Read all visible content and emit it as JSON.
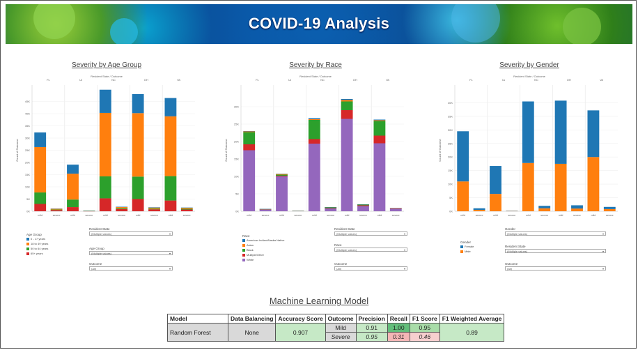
{
  "banner": {
    "title": "COVID-19 Analysis"
  },
  "colors": {
    "blue": "#1f77b4",
    "orange": "#ff7f0e",
    "green": "#2ca02c",
    "red": "#d62728",
    "purple": "#9467bd"
  },
  "common": {
    "states": [
      "FL",
      "IA",
      "NC",
      "OH",
      "VA"
    ],
    "x_categories": [
      "mild",
      "severe",
      "mild",
      "severe",
      "mild",
      "severe",
      "mild",
      "severe",
      "mild",
      "severe"
    ],
    "facet_header": "Resident State / Outcome",
    "y_label": "Count of Outcome"
  },
  "panels": [
    {
      "title": "Severity by Age Group",
      "controls": [
        {
          "label": "Resident State",
          "value": "(Multiple values)"
        },
        {
          "label": "Age Group",
          "value": "(Multiple values)"
        },
        {
          "label": "Outcome",
          "value": "(All)"
        }
      ],
      "legend_title": "Age Group"
    },
    {
      "title": "Severity by Race",
      "controls": [
        {
          "label": "Resident State",
          "value": "(Multiple values)"
        },
        {
          "label": "Race",
          "value": "(Multiple values)"
        },
        {
          "label": "Outcome",
          "value": "(All)"
        }
      ],
      "legend_title": "Race"
    },
    {
      "title": "Severity by Gender",
      "controls": [
        {
          "label": "Gender",
          "value": "(Multiple values)"
        },
        {
          "label": "Resident State",
          "value": "(Multiple values)"
        },
        {
          "label": "Outcome",
          "value": "(All)"
        }
      ],
      "legend_title": "Gender"
    }
  ],
  "chart_data": [
    {
      "type": "bar",
      "title": "Severity by Age Group",
      "stacked": true,
      "ylabel": "Count of Outcome",
      "ylim": [
        0,
        50000
      ],
      "yticks": [
        "0K",
        "5K",
        "10K",
        "15K",
        "20K",
        "25K",
        "30K",
        "35K",
        "40K",
        "45K"
      ],
      "categories": [
        "FL mild",
        "FL severe",
        "IA mild",
        "IA severe",
        "NC mild",
        "NC severe",
        "OH mild",
        "OH severe",
        "VA mild",
        "VA severe"
      ],
      "series": [
        {
          "name": "65+ years",
          "color": "#d62728",
          "values": [
            3000,
            500,
            1700,
            80,
            5300,
            900,
            5000,
            800,
            4400,
            700
          ]
        },
        {
          "name": "50 to 64 years",
          "color": "#2ca02c",
          "values": [
            4700,
            200,
            3100,
            50,
            9000,
            350,
            9200,
            300,
            10000,
            300
          ]
        },
        {
          "name": "18 to 49 years",
          "color": "#ff7f0e",
          "values": [
            18600,
            300,
            10600,
            100,
            26000,
            450,
            26000,
            400,
            24500,
            400
          ]
        },
        {
          "name": "0 - 17 years",
          "color": "#1f77b4",
          "values": [
            6000,
            100,
            3700,
            50,
            9500,
            150,
            7800,
            150,
            7500,
            120
          ]
        }
      ]
    },
    {
      "type": "bar",
      "title": "Severity by Race",
      "stacked": true,
      "ylabel": "Count of Outcome",
      "ylim": [
        0,
        35000
      ],
      "yticks": [
        "0K",
        "5K",
        "10K",
        "15K",
        "20K",
        "25K",
        "30K"
      ],
      "categories": [
        "FL mild",
        "FL severe",
        "IA mild",
        "IA severe",
        "NC mild",
        "NC severe",
        "OH mild",
        "OH severe",
        "VA mild",
        "VA severe"
      ],
      "series": [
        {
          "name": "White",
          "color": "#9467bd",
          "values": [
            17500,
            500,
            10000,
            100,
            19400,
            800,
            26500,
            1500,
            19500,
            700
          ]
        },
        {
          "name": "Multiple/Other",
          "color": "#d62728",
          "values": [
            1700,
            50,
            200,
            10,
            1300,
            100,
            2500,
            200,
            2200,
            100
          ]
        },
        {
          "name": "Black",
          "color": "#2ca02c",
          "values": [
            3500,
            100,
            300,
            10,
            5500,
            250,
            2500,
            250,
            4200,
            100
          ]
        },
        {
          "name": "Asian",
          "color": "#ff7f0e",
          "values": [
            200,
            10,
            200,
            5,
            200,
            10,
            400,
            20,
            200,
            10
          ]
        },
        {
          "name": "American Indian/Alaska Native",
          "color": "#1f77b4",
          "values": [
            100,
            10,
            50,
            5,
            300,
            20,
            300,
            20,
            200,
            10
          ]
        }
      ]
    },
    {
      "type": "bar",
      "title": "Severity by Gender",
      "stacked": true,
      "ylabel": "Count of Outcome",
      "ylim": [
        0,
        45000
      ],
      "yticks": [
        "0K",
        "5K",
        "10K",
        "15K",
        "20K",
        "25K",
        "30K",
        "35K",
        "40K"
      ],
      "categories": [
        "FL mild",
        "FL severe",
        "IA mild",
        "IA severe",
        "NC mild",
        "NC severe",
        "OH mild",
        "OH severe",
        "VA mild",
        "VA severe"
      ],
      "series": [
        {
          "name": "Male",
          "color": "#ff7f0e",
          "values": [
            11000,
            500,
            6400,
            100,
            17800,
            1100,
            17500,
            1000,
            20000,
            800
          ]
        },
        {
          "name": "Female",
          "color": "#1f77b4",
          "values": [
            18500,
            600,
            10300,
            100,
            22700,
            900,
            23300,
            1200,
            17200,
            800
          ]
        }
      ]
    }
  ],
  "ml": {
    "title": "Machine Learning Model",
    "headers": [
      "Model",
      "Data Balancing",
      "Accuracy Score",
      "Outcome",
      "Precision",
      "Recall",
      "F1 Score",
      "F1 Weighted Average"
    ],
    "model": "Random Forest",
    "balancing": "None",
    "accuracy": "0.907",
    "rows": [
      {
        "outcome": "Mild",
        "precision": "0.91",
        "recall": "1.00",
        "f1": "0.95"
      },
      {
        "outcome": "Severe",
        "precision": "0.95",
        "recall": "0.31",
        "f1": "0.46"
      }
    ],
    "f1_weighted": "0.89"
  }
}
